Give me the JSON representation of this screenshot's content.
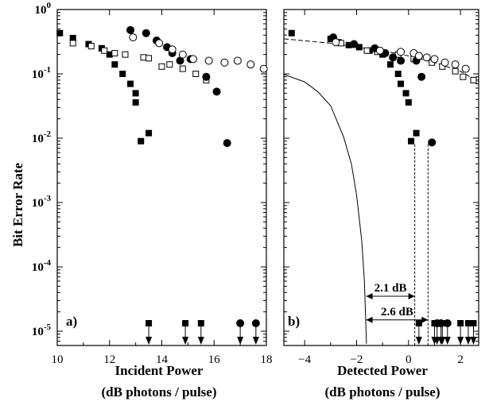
{
  "chart_data": [
    {
      "type": "scatter",
      "panel_label": "a)",
      "xlabel": "Incident Power",
      "xlabel_unit": "(dB photons / pulse)",
      "ylabel": "Bit Error Rate",
      "xlim": [
        10,
        18
      ],
      "ylim": [
        6e-06,
        1
      ],
      "yscale": "log",
      "x_ticks": [
        10,
        12,
        14,
        16,
        18
      ],
      "y_ticks": [
        1,
        0.1,
        0.01,
        0.001,
        0.0001,
        1e-05
      ],
      "y_tick_labels": [
        {
          "base": "10",
          "exp": "0"
        },
        {
          "base": "10",
          "exp": "-1"
        },
        {
          "base": "10",
          "exp": "-2"
        },
        {
          "base": "10",
          "exp": "-3"
        },
        {
          "base": "10",
          "exp": "-4"
        },
        {
          "base": "10",
          "exp": "-5"
        }
      ],
      "series": [
        {
          "marker": "filled-square",
          "points": [
            [
              10.1,
              0.43
            ],
            [
              10.6,
              0.36
            ],
            [
              11.2,
              0.29
            ],
            [
              11.7,
              0.25
            ],
            [
              12.0,
              0.2
            ],
            [
              12.2,
              0.14
            ],
            [
              12.5,
              0.1
            ],
            [
              12.8,
              0.07
            ],
            [
              13.0,
              0.05
            ],
            [
              13.0,
              0.036
            ],
            [
              13.2,
              0.009
            ],
            [
              13.5,
              0.012
            ]
          ]
        },
        {
          "marker": "open-square",
          "points": [
            [
              10.6,
              0.3
            ],
            [
              11.3,
              0.27
            ],
            [
              11.8,
              0.23
            ],
            [
              12.2,
              0.21
            ],
            [
              12.6,
              0.2
            ],
            [
              13.3,
              0.18
            ],
            [
              13.5,
              0.175
            ],
            [
              14.0,
              0.13
            ],
            [
              14.3,
              0.14
            ],
            [
              14.8,
              0.12
            ],
            [
              15.3,
              0.1
            ],
            [
              15.7,
              0.08
            ]
          ]
        },
        {
          "marker": "filled-circle",
          "points": [
            [
              12.8,
              0.48
            ],
            [
              13.4,
              0.43
            ],
            [
              13.8,
              0.33
            ],
            [
              14.2,
              0.26
            ],
            [
              14.4,
              0.21
            ],
            [
              14.7,
              0.16
            ],
            [
              15.1,
              0.17
            ],
            [
              15.7,
              0.09
            ],
            [
              16.1,
              0.053
            ],
            [
              16.5,
              0.0084
            ]
          ]
        },
        {
          "marker": "open-circle",
          "points": [
            [
              12.9,
              0.37
            ],
            [
              13.9,
              0.3
            ],
            [
              14.4,
              0.24
            ],
            [
              14.8,
              0.2
            ],
            [
              15.2,
              0.17
            ],
            [
              15.8,
              0.16
            ],
            [
              16.4,
              0.15
            ],
            [
              16.9,
              0.16
            ],
            [
              17.4,
              0.14
            ],
            [
              17.9,
              0.12
            ]
          ]
        }
      ],
      "below_range": [
        {
          "marker": "filled-square",
          "x": [
            13.5,
            14.9,
            15.5
          ]
        },
        {
          "marker": "filled-circle",
          "x": [
            17.0,
            17.6
          ]
        }
      ]
    },
    {
      "type": "scatter",
      "panel_label": "b)",
      "xlabel": "Detected Power",
      "xlabel_unit": "(dB photons / pulse)",
      "xlim": [
        -4.8,
        2.7
      ],
      "ylim": [
        6e-06,
        1
      ],
      "yscale": "log",
      "x_ticks": [
        -4,
        -2,
        0,
        2
      ],
      "series": [
        {
          "marker": "filled-square",
          "points": [
            [
              -4.5,
              0.43
            ],
            [
              -3.0,
              0.35
            ],
            [
              -2.7,
              0.31
            ],
            [
              -2.3,
              0.28
            ],
            [
              -1.9,
              0.26
            ],
            [
              -1.5,
              0.23
            ],
            [
              -1.0,
              0.2
            ],
            [
              -0.7,
              0.14
            ],
            [
              -0.4,
              0.1
            ],
            [
              -0.3,
              0.07
            ],
            [
              -0.1,
              0.05
            ],
            [
              0.0,
              0.036
            ],
            [
              0.1,
              0.009
            ],
            [
              0.3,
              0.012
            ]
          ]
        },
        {
          "marker": "open-square",
          "points": [
            [
              -2.6,
              0.3
            ],
            [
              -1.6,
              0.23
            ],
            [
              -1.2,
              0.22
            ],
            [
              -0.4,
              0.2
            ],
            [
              0.2,
              0.17
            ],
            [
              0.9,
              0.15
            ],
            [
              1.3,
              0.13
            ],
            [
              1.8,
              0.11
            ],
            [
              2.1,
              0.09
            ],
            [
              2.5,
              0.08
            ]
          ]
        },
        {
          "marker": "filled-circle",
          "points": [
            [
              -2.9,
              0.37
            ],
            [
              -2.1,
              0.29
            ],
            [
              -1.3,
              0.25
            ],
            [
              -0.9,
              0.21
            ],
            [
              -0.6,
              0.18
            ],
            [
              -0.3,
              0.16
            ],
            [
              0.3,
              0.16
            ],
            [
              0.5,
              0.09
            ],
            [
              0.9,
              0.0086
            ]
          ]
        },
        {
          "marker": "open-circle",
          "points": [
            [
              -2.8,
              0.31
            ],
            [
              -1.1,
              0.23
            ],
            [
              -0.3,
              0.22
            ],
            [
              0.2,
              0.21
            ],
            [
              0.4,
              0.19
            ],
            [
              0.7,
              0.18
            ],
            [
              1.0,
              0.17
            ],
            [
              1.4,
              0.15
            ],
            [
              1.8,
              0.14
            ],
            [
              2.2,
              0.12
            ]
          ]
        }
      ],
      "curves": [
        {
          "style": "dashed",
          "points": [
            [
              -4.8,
              0.35
            ],
            [
              -3,
              0.3
            ],
            [
              -2,
              0.26
            ],
            [
              -1,
              0.23
            ],
            [
              0,
              0.19
            ],
            [
              1,
              0.15
            ],
            [
              2,
              0.11
            ],
            [
              2.7,
              0.075
            ]
          ]
        },
        {
          "style": "solid",
          "points": [
            [
              -4.8,
              0.098
            ],
            [
              -4.0,
              0.075
            ],
            [
              -3.5,
              0.053
            ],
            [
              -3.0,
              0.032
            ],
            [
              -2.5,
              0.0105
            ],
            [
              -2.2,
              0.004
            ],
            [
              -2.0,
              0.0013
            ],
            [
              -1.8,
              0.00025
            ],
            [
              -1.7,
              6e-05
            ],
            [
              -1.62,
              6.4e-06
            ]
          ]
        }
      ],
      "vlines": [
        0.24,
        0.75
      ],
      "annotations": [
        {
          "text": "2.1 dB",
          "from_x": -1.63,
          "to_x": 0.24,
          "y": 3.5e-05
        },
        {
          "text": "2.6 dB",
          "from_x": -1.63,
          "to_x": 0.75,
          "y": 1.5e-05
        }
      ],
      "below_range": [
        {
          "marker": "filled-square",
          "x": [
            0.4,
            1.0,
            1.3,
            2.0,
            2.3,
            2.5
          ]
        },
        {
          "marker": "filled-circle",
          "x": [
            1.1,
            1.25,
            1.5
          ]
        }
      ]
    }
  ]
}
